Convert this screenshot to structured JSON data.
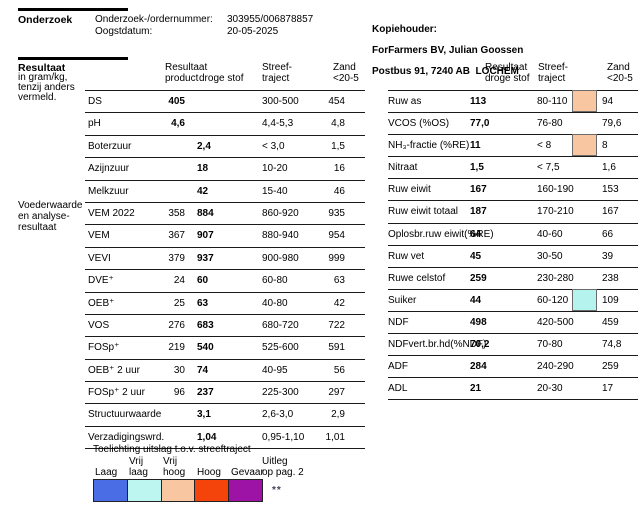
{
  "page": {
    "onderzoek": {
      "title": "Onderzoek",
      "order_label": "Onderzoek-/ordernummer:",
      "order_value": "303955/006878857",
      "date_label": "Oogstdatum:",
      "date_value": "20-05-2025"
    },
    "kopiehouder": {
      "label": "Kopiehouder:",
      "line1": "ForFarmers BV, Julian Goossen",
      "line2": "Postbus 91, 7240 AB  LOCHEM"
    },
    "resultaat": {
      "title": "Resultaat",
      "subtitle": "in gram/kg,\ntenzij anders\nvermeld.",
      "side_label": "Voederwaarde\nen analyse-\nresultaat"
    }
  },
  "left_table": {
    "header": {
      "resultaat_product": "Resultaat\nproduct",
      "droge_stof": "droge stof",
      "streef": "Streef-\ntraject",
      "zand": "Zand\n<20-5"
    },
    "rows": [
      {
        "name": "DS",
        "product": "405",
        "ds": "",
        "streef": "300-500",
        "zand": "454"
      },
      {
        "name": "pH",
        "product": "4,6",
        "ds": "",
        "streef": "4,4-5,3",
        "zand": "4,8"
      },
      {
        "name": "Boterzuur",
        "product": "",
        "ds": "2,4",
        "streef": "< 3,0",
        "zand": "1,5"
      },
      {
        "name": "Azijnzuur",
        "product": "",
        "ds": "18",
        "streef": "10-20",
        "zand": "16"
      },
      {
        "name": "Melkzuur",
        "product": "",
        "ds": "42",
        "streef": "15-40",
        "zand": "46"
      },
      {
        "name": "VEM 2022",
        "product": "358",
        "ds": "884",
        "streef": "860-920",
        "zand": "935"
      },
      {
        "name": "VEM",
        "product": "367",
        "ds": "907",
        "streef": "880-940",
        "zand": "954"
      },
      {
        "name": "VEVI",
        "product": "379",
        "ds": "937",
        "streef": "900-980",
        "zand": "999"
      },
      {
        "name": "DVE⁺",
        "product": "24",
        "ds": "60",
        "streef": "60-80",
        "zand": "63"
      },
      {
        "name": "OEB⁺",
        "product": "25",
        "ds": "63",
        "streef": "40-80",
        "zand": "42"
      },
      {
        "name": "VOS",
        "product": "276",
        "ds": "683",
        "streef": "680-720",
        "zand": "722"
      },
      {
        "name": "FOSp⁺",
        "product": "219",
        "ds": "540",
        "streef": "525-600",
        "zand": "591"
      },
      {
        "name": "OEB⁺ 2 uur",
        "product": "30",
        "ds": "74",
        "streef": "40-95",
        "zand": "56"
      },
      {
        "name": "FOSp⁺ 2 uur",
        "product": "96",
        "ds": "237",
        "streef": "225-300",
        "zand": "297"
      },
      {
        "name": "Structuurwaarde",
        "product": "",
        "ds": "3,1",
        "streef": "2,6-3,0",
        "zand": "2,9"
      },
      {
        "name": "Verzadigingswrd.",
        "product": "",
        "ds": "1,04",
        "streef": "0,95-1,10",
        "zand": "1,01"
      }
    ]
  },
  "right_table": {
    "header": {
      "resultaat_ds": "Resultaat\ndroge stof",
      "streef": "Streef-\ntraject",
      "zand": "Zand\n<20-5"
    },
    "rows": [
      {
        "name": "Ruw as",
        "value": "113",
        "streef": "80-110",
        "flag": "vrij_hoog",
        "zand": "94"
      },
      {
        "name": "VCOS (%OS)",
        "value": "77,0",
        "streef": "76-80",
        "flag": null,
        "zand": "79,6"
      },
      {
        "name": "NH₃-fractie (%RE)",
        "value": "11",
        "streef": "< 8",
        "flag": "vrij_hoog",
        "zand": "8"
      },
      {
        "name": "Nitraat",
        "value": "1,5",
        "streef": "< 7,5",
        "flag": null,
        "zand": "1,6"
      },
      {
        "name": "Ruw eiwit",
        "value": "167",
        "streef": "160-190",
        "flag": null,
        "zand": "153"
      },
      {
        "name": "Ruw eiwit totaal",
        "value": "187",
        "streef": "170-210",
        "flag": null,
        "zand": "167"
      },
      {
        "name": "Oplosbr.ruw eiwit(%RE)",
        "value": "64",
        "streef": "40-60",
        "flag": null,
        "zand": "66"
      },
      {
        "name": "Ruw vet",
        "value": "45",
        "streef": "30-50",
        "flag": null,
        "zand": "39"
      },
      {
        "name": "Ruwe celstof",
        "value": "259",
        "streef": "230-280",
        "flag": null,
        "zand": "238"
      },
      {
        "name": "Suiker",
        "value": "44",
        "streef": "60-120",
        "flag": "vrij_laag",
        "zand": "109"
      },
      {
        "name": "NDF",
        "value": "498",
        "streef": "420-500",
        "flag": null,
        "zand": "459"
      },
      {
        "name": "NDFvert.br.hd(%NDF)",
        "value": "70,2",
        "streef": "70-80",
        "flag": null,
        "zand": "74,8"
      },
      {
        "name": "ADF",
        "value": "284",
        "streef": "240-290",
        "flag": null,
        "zand": "259"
      },
      {
        "name": "ADL",
        "value": "21",
        "streef": "20-30",
        "flag": null,
        "zand": "17"
      }
    ]
  },
  "flag_colors": {
    "vrij_laag": "#b5f3ef",
    "vrij_hoog": "#f8c6a0"
  },
  "legend": {
    "title": "Toelichting uitslag t.o.v. streeftraject",
    "items": [
      {
        "top": "",
        "bottom": "Laag",
        "color": "#4a6ce5"
      },
      {
        "top": "Vrij",
        "bottom": "laag",
        "color": "#bdf6f1"
      },
      {
        "top": "Vrij",
        "bottom": "hoog",
        "color": "#f8c6a0"
      },
      {
        "top": "",
        "bottom": "Hoog",
        "color": "#f4440c"
      },
      {
        "top": "",
        "bottom": "Gevaar",
        "color": "#9c13a5"
      }
    ],
    "uitleg_top": "Uitleg",
    "uitleg_bottom": "op pag. 2",
    "footnote": "**"
  }
}
